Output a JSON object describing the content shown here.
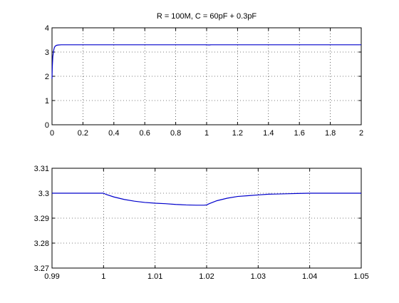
{
  "colors": {
    "series": "#0000cc",
    "axes": "#000000",
    "background": "#ffffff"
  },
  "chart_data": [
    {
      "type": "line",
      "title": "R = 100M, C = 60pF + 0.3pF",
      "xlabel": "",
      "ylabel": "",
      "xlim": [
        0,
        2
      ],
      "ylim": [
        0,
        4
      ],
      "grid": true,
      "x_ticks": [
        0,
        0.2,
        0.4,
        0.6,
        0.8,
        1,
        1.2,
        1.4,
        1.6,
        1.8,
        2
      ],
      "x_tick_labels": [
        "0",
        "0.2",
        "0.4",
        "0.6",
        "0.8",
        "1",
        "1.2",
        "1.4",
        "1.6",
        "1.8",
        "2"
      ],
      "y_ticks": [
        0,
        1,
        2,
        3,
        4
      ],
      "y_tick_labels": [
        "0",
        "1",
        "2",
        "3",
        "4"
      ],
      "series": [
        {
          "x": [
            0,
            0.002,
            0.005,
            0.01,
            0.015,
            0.02,
            0.03,
            0.04,
            0.06,
            0.1,
            0.5,
            0.99,
            1.0,
            1.005,
            1.01,
            1.015,
            1.02,
            1.025,
            1.03,
            1.04,
            1.5,
            2.0
          ],
          "y": [
            1.9,
            2.4,
            2.8,
            3.05,
            3.18,
            3.24,
            3.28,
            3.29,
            3.3,
            3.3,
            3.3,
            3.3,
            3.297,
            3.296,
            3.295,
            3.295,
            3.295,
            3.297,
            3.299,
            3.3,
            3.3,
            3.3
          ]
        }
      ]
    },
    {
      "type": "line",
      "title": "",
      "xlabel": "",
      "ylabel": "",
      "xlim": [
        0.99,
        1.05
      ],
      "ylim": [
        3.27,
        3.31
      ],
      "grid": true,
      "x_ticks": [
        0.99,
        1,
        1.01,
        1.02,
        1.03,
        1.04,
        1.05
      ],
      "x_tick_labels": [
        "0.99",
        "1",
        "1.01",
        "1.02",
        "1.03",
        "1.04",
        "1.05"
      ],
      "y_ticks": [
        3.27,
        3.28,
        3.29,
        3.3,
        3.31
      ],
      "y_tick_labels": [
        "3.27",
        "3.28",
        "3.29",
        "3.3",
        "3.31"
      ],
      "series": [
        {
          "x": [
            0.99,
            1.0,
            1.0005,
            1.002,
            1.004,
            1.006,
            1.008,
            1.01,
            1.012,
            1.014,
            1.016,
            1.018,
            1.0195,
            1.02,
            1.0205,
            1.022,
            1.024,
            1.026,
            1.028,
            1.03,
            1.032,
            1.034,
            1.036,
            1.0375,
            1.04,
            1.05
          ],
          "y": [
            3.3,
            3.3,
            3.2995,
            3.2985,
            3.2975,
            3.2968,
            3.2963,
            3.296,
            3.2958,
            3.2955,
            3.2953,
            3.2952,
            3.2952,
            3.2953,
            3.2958,
            3.297,
            3.298,
            3.2987,
            3.299,
            3.2993,
            3.2996,
            3.2997,
            3.2998,
            3.2999,
            3.3,
            3.3
          ]
        }
      ]
    }
  ]
}
